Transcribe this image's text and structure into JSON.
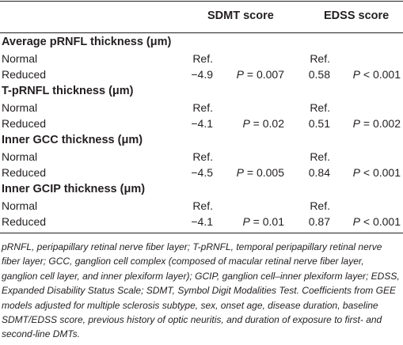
{
  "header": {
    "sdmt_label": "SDMT score",
    "edss_label": "EDSS score"
  },
  "groups": [
    {
      "title": "Average pRNFL thickness (μm)",
      "rows": [
        {
          "label": "Normal",
          "sdmt_value": "Ref.",
          "sdmt_p": "",
          "edss_value": "Ref.",
          "edss_p": ""
        },
        {
          "label": "Reduced",
          "sdmt_value": "−4.9",
          "sdmt_p": "P = 0.007",
          "edss_value": "0.58",
          "edss_p": "P < 0.001"
        }
      ]
    },
    {
      "title": "T-pRNFL thickness (μm)",
      "rows": [
        {
          "label": "Normal",
          "sdmt_value": "Ref.",
          "sdmt_p": "",
          "edss_value": "Ref.",
          "edss_p": ""
        },
        {
          "label": "Reduced",
          "sdmt_value": "−4.1",
          "sdmt_p": "P = 0.02",
          "edss_value": "0.51",
          "edss_p": "P = 0.002"
        }
      ]
    },
    {
      "title": "Inner GCC thickness (μm)",
      "rows": [
        {
          "label": "Normal",
          "sdmt_value": "Ref.",
          "sdmt_p": "",
          "edss_value": "Ref.",
          "edss_p": ""
        },
        {
          "label": "Reduced",
          "sdmt_value": "−4.5",
          "sdmt_p": "P = 0.005",
          "edss_value": "0.84",
          "edss_p": "P < 0.001"
        }
      ]
    },
    {
      "title": "Inner GCIP thickness (μm)",
      "rows": [
        {
          "label": "Normal",
          "sdmt_value": "Ref.",
          "sdmt_p": "",
          "edss_value": "Ref.",
          "edss_p": ""
        },
        {
          "label": "Reduced",
          "sdmt_value": "−4.1",
          "sdmt_p": "P = 0.01",
          "edss_value": "0.87",
          "edss_p": "P < 0.001"
        }
      ]
    }
  ],
  "footnote": "pRNFL, peripapillary retinal nerve fiber layer; T-pRNFL, temporal peripapillary retinal nerve fiber layer; GCC, ganglion cell complex (composed of macular retinal nerve fiber layer, ganglion cell layer, and inner plexiform layer); GCIP, ganglion cell–inner plexiform layer; EDSS, Expanded Disability Status Scale; SDMT, Symbol Digit Modalities Test. Coefficients from GEE models adjusted for multiple sclerosis subtype, sex, onset age, disease duration, baseline SDMT/EDSS score, previous history of optic neuritis, and duration of exposure to first- and second-line DMTs."
}
